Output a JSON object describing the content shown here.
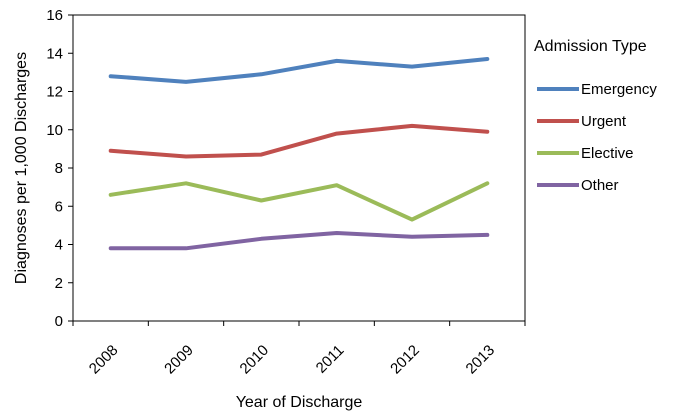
{
  "chart_data": {
    "type": "line",
    "xlabel": "Year of Discharge",
    "ylabel": "Diagnoses per 1,000 Discharges",
    "categories": [
      "2008",
      "2009",
      "2010",
      "2011",
      "2012",
      "2013"
    ],
    "ylim": [
      0,
      16
    ],
    "yticks": [
      0,
      2,
      4,
      6,
      8,
      10,
      12,
      14,
      16
    ],
    "grid": false,
    "legend": {
      "title": "Admission Type",
      "placement": "right"
    },
    "series": [
      {
        "name": "Emergency",
        "color": "#4f81bd",
        "values": [
          12.8,
          12.5,
          12.9,
          13.6,
          13.3,
          13.7
        ]
      },
      {
        "name": "Urgent",
        "color": "#c0504d",
        "values": [
          8.9,
          8.6,
          8.7,
          9.8,
          10.2,
          9.9
        ]
      },
      {
        "name": "Elective",
        "color": "#9bbb59",
        "values": [
          6.6,
          7.2,
          6.3,
          7.1,
          5.3,
          7.2
        ]
      },
      {
        "name": "Other",
        "color": "#8064a2",
        "values": [
          3.8,
          3.8,
          4.3,
          4.6,
          4.4,
          4.5
        ]
      }
    ]
  }
}
